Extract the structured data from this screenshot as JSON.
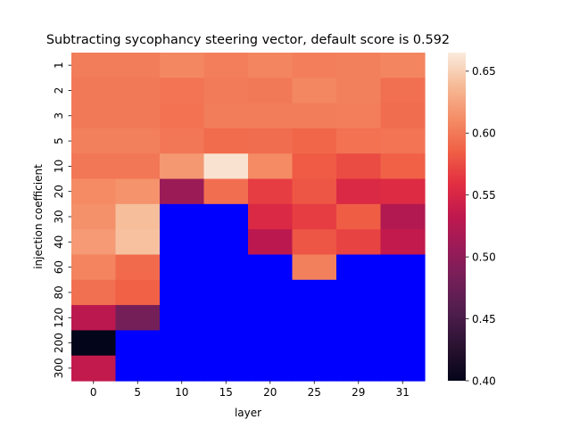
{
  "chart_data": {
    "type": "heatmap",
    "title": "Subtracting sycophancy steering vector, default score is 0.592",
    "xlabel": "layer",
    "ylabel": "injection coefficient",
    "x_categories": [
      "0",
      "5",
      "10",
      "15",
      "20",
      "25",
      "29",
      "31"
    ],
    "y_categories": [
      "1",
      "2",
      "3",
      "5",
      "10",
      "20",
      "30",
      "40",
      "60",
      "80",
      "120",
      "200",
      "300"
    ],
    "values": [
      [
        0.602,
        0.602,
        0.608,
        0.603,
        0.607,
        0.603,
        0.604,
        0.607
      ],
      [
        0.6,
        0.6,
        0.597,
        0.601,
        0.6,
        0.608,
        0.604,
        0.595
      ],
      [
        0.6,
        0.6,
        0.596,
        0.602,
        0.602,
        0.602,
        0.603,
        0.593
      ],
      [
        0.604,
        0.604,
        0.599,
        0.592,
        0.593,
        0.589,
        0.596,
        0.597
      ],
      [
        0.599,
        0.599,
        0.618,
        0.66,
        0.61,
        0.583,
        0.575,
        0.586
      ],
      [
        0.61,
        0.615,
        0.508,
        0.594,
        0.567,
        0.58,
        0.553,
        0.555
      ],
      [
        0.614,
        0.64,
        null,
        null,
        0.553,
        0.567,
        0.584,
        0.524
      ],
      [
        0.619,
        0.642,
        null,
        null,
        0.53,
        0.58,
        0.57,
        0.535
      ],
      [
        0.606,
        0.591,
        null,
        null,
        null,
        0.604,
        null,
        null
      ],
      [
        0.595,
        0.586,
        null,
        null,
        null,
        null,
        null,
        null
      ],
      [
        0.53,
        0.482,
        null,
        null,
        null,
        null,
        null,
        null
      ],
      [
        0.4,
        null,
        null,
        null,
        null,
        null,
        null,
        null
      ],
      [
        0.535,
        null,
        null,
        null,
        null,
        null,
        null,
        null
      ]
    ],
    "missing_color": "#0000ff",
    "colormap": "rocket",
    "vmin": 0.4,
    "vmax": 0.665,
    "colorbar_ticks": [
      "0.40",
      "0.45",
      "0.50",
      "0.55",
      "0.60",
      "0.65"
    ],
    "grid": false,
    "colorbar": "right"
  }
}
